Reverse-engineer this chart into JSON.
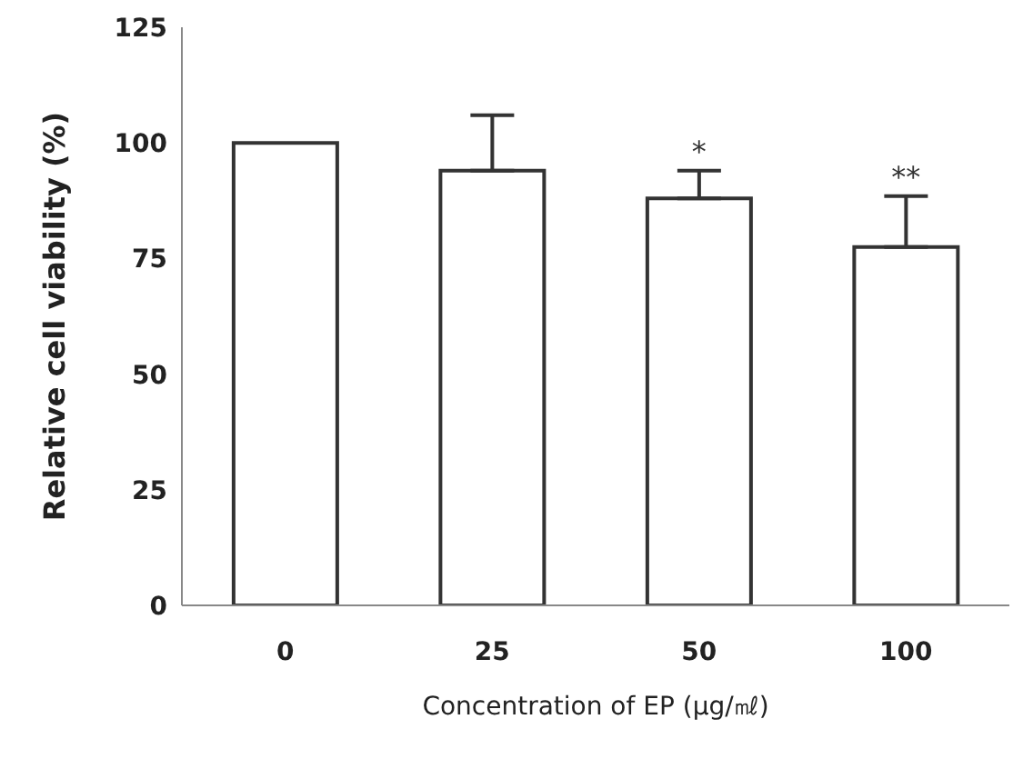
{
  "chart_data": {
    "type": "bar",
    "xlabel": "Concentration of EP (μg/㎖)",
    "ylabel": "Relative cell viability (%)",
    "categories": [
      "0",
      "25",
      "50",
      "100"
    ],
    "values": [
      100,
      94,
      88,
      77.5
    ],
    "errors": [
      null,
      [
        94,
        106
      ],
      [
        88,
        94
      ],
      [
        77.5,
        88.5
      ]
    ],
    "color": "#ffffff",
    "ylim": [
      0,
      125
    ],
    "yticks": [
      0,
      25,
      50,
      75,
      100,
      125
    ],
    "annotations": [
      {
        "text": "*",
        "x": "50",
        "y": 94
      },
      {
        "text": "**",
        "x": "100",
        "y": 88.5
      }
    ]
  }
}
